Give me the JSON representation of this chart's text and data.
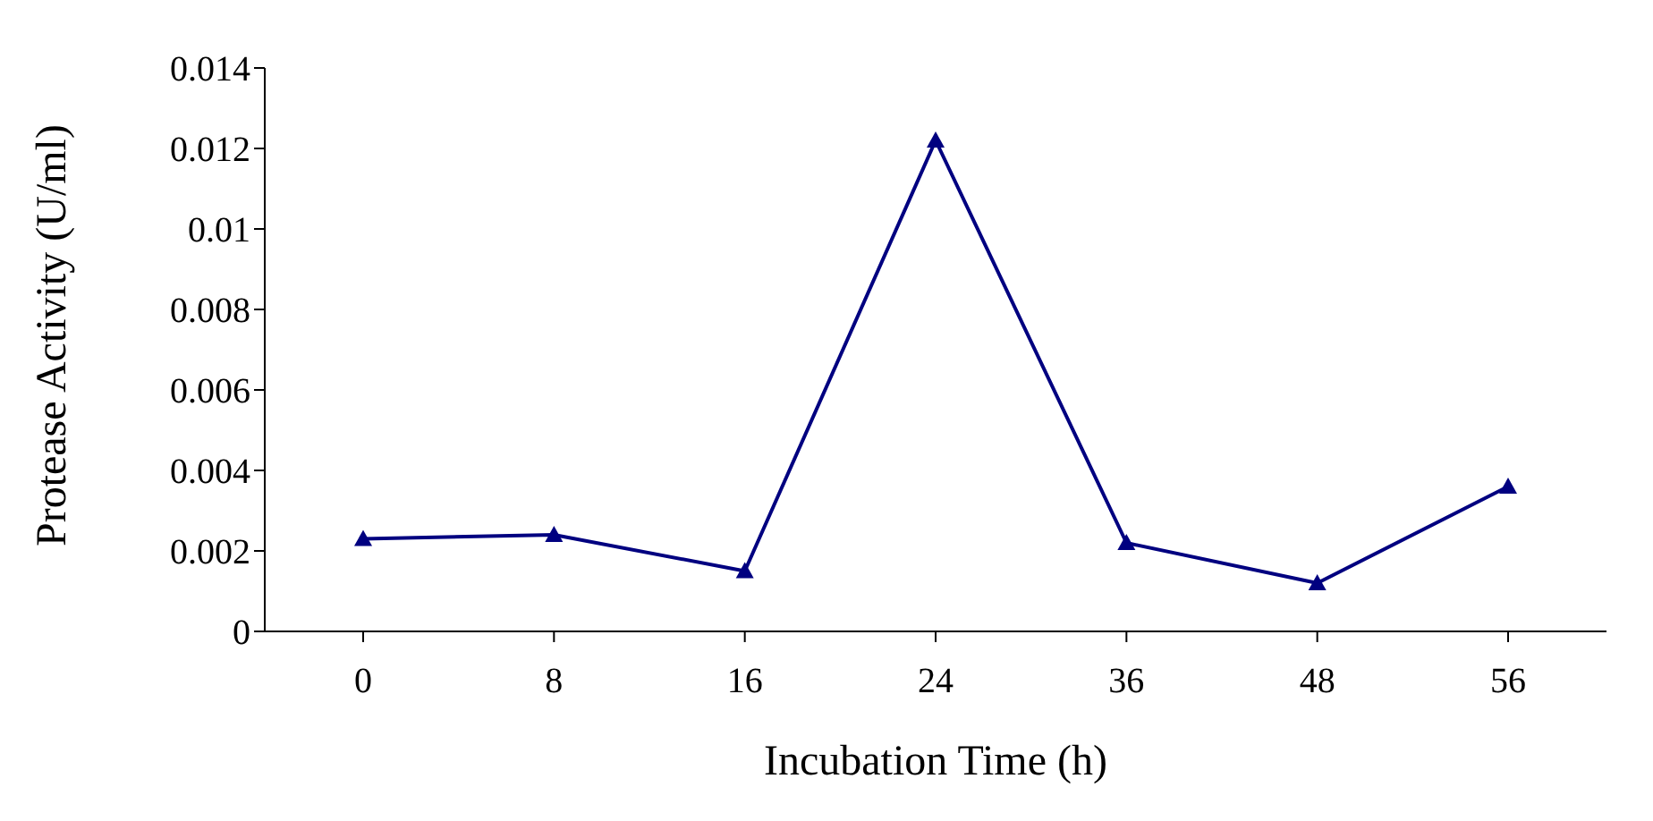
{
  "chart_data": {
    "type": "line",
    "xlabel": "Incubation Time (h)",
    "ylabel": "Protease Activity (U/ml)",
    "categories": [
      "0",
      "8",
      "16",
      "24",
      "36",
      "48",
      "56"
    ],
    "series": [
      {
        "color": "#000080",
        "values": [
          0.0023,
          0.0024,
          0.0015,
          0.0122,
          0.0022,
          0.0012,
          0.0036
        ]
      }
    ],
    "ylim": [
      0,
      0.014
    ],
    "yticks": [
      0,
      0.002,
      0.004,
      0.006,
      0.008,
      0.01,
      0.012,
      0.014
    ],
    "marker": "triangle",
    "line_style": "solid",
    "grid": false,
    "legend": false
  }
}
